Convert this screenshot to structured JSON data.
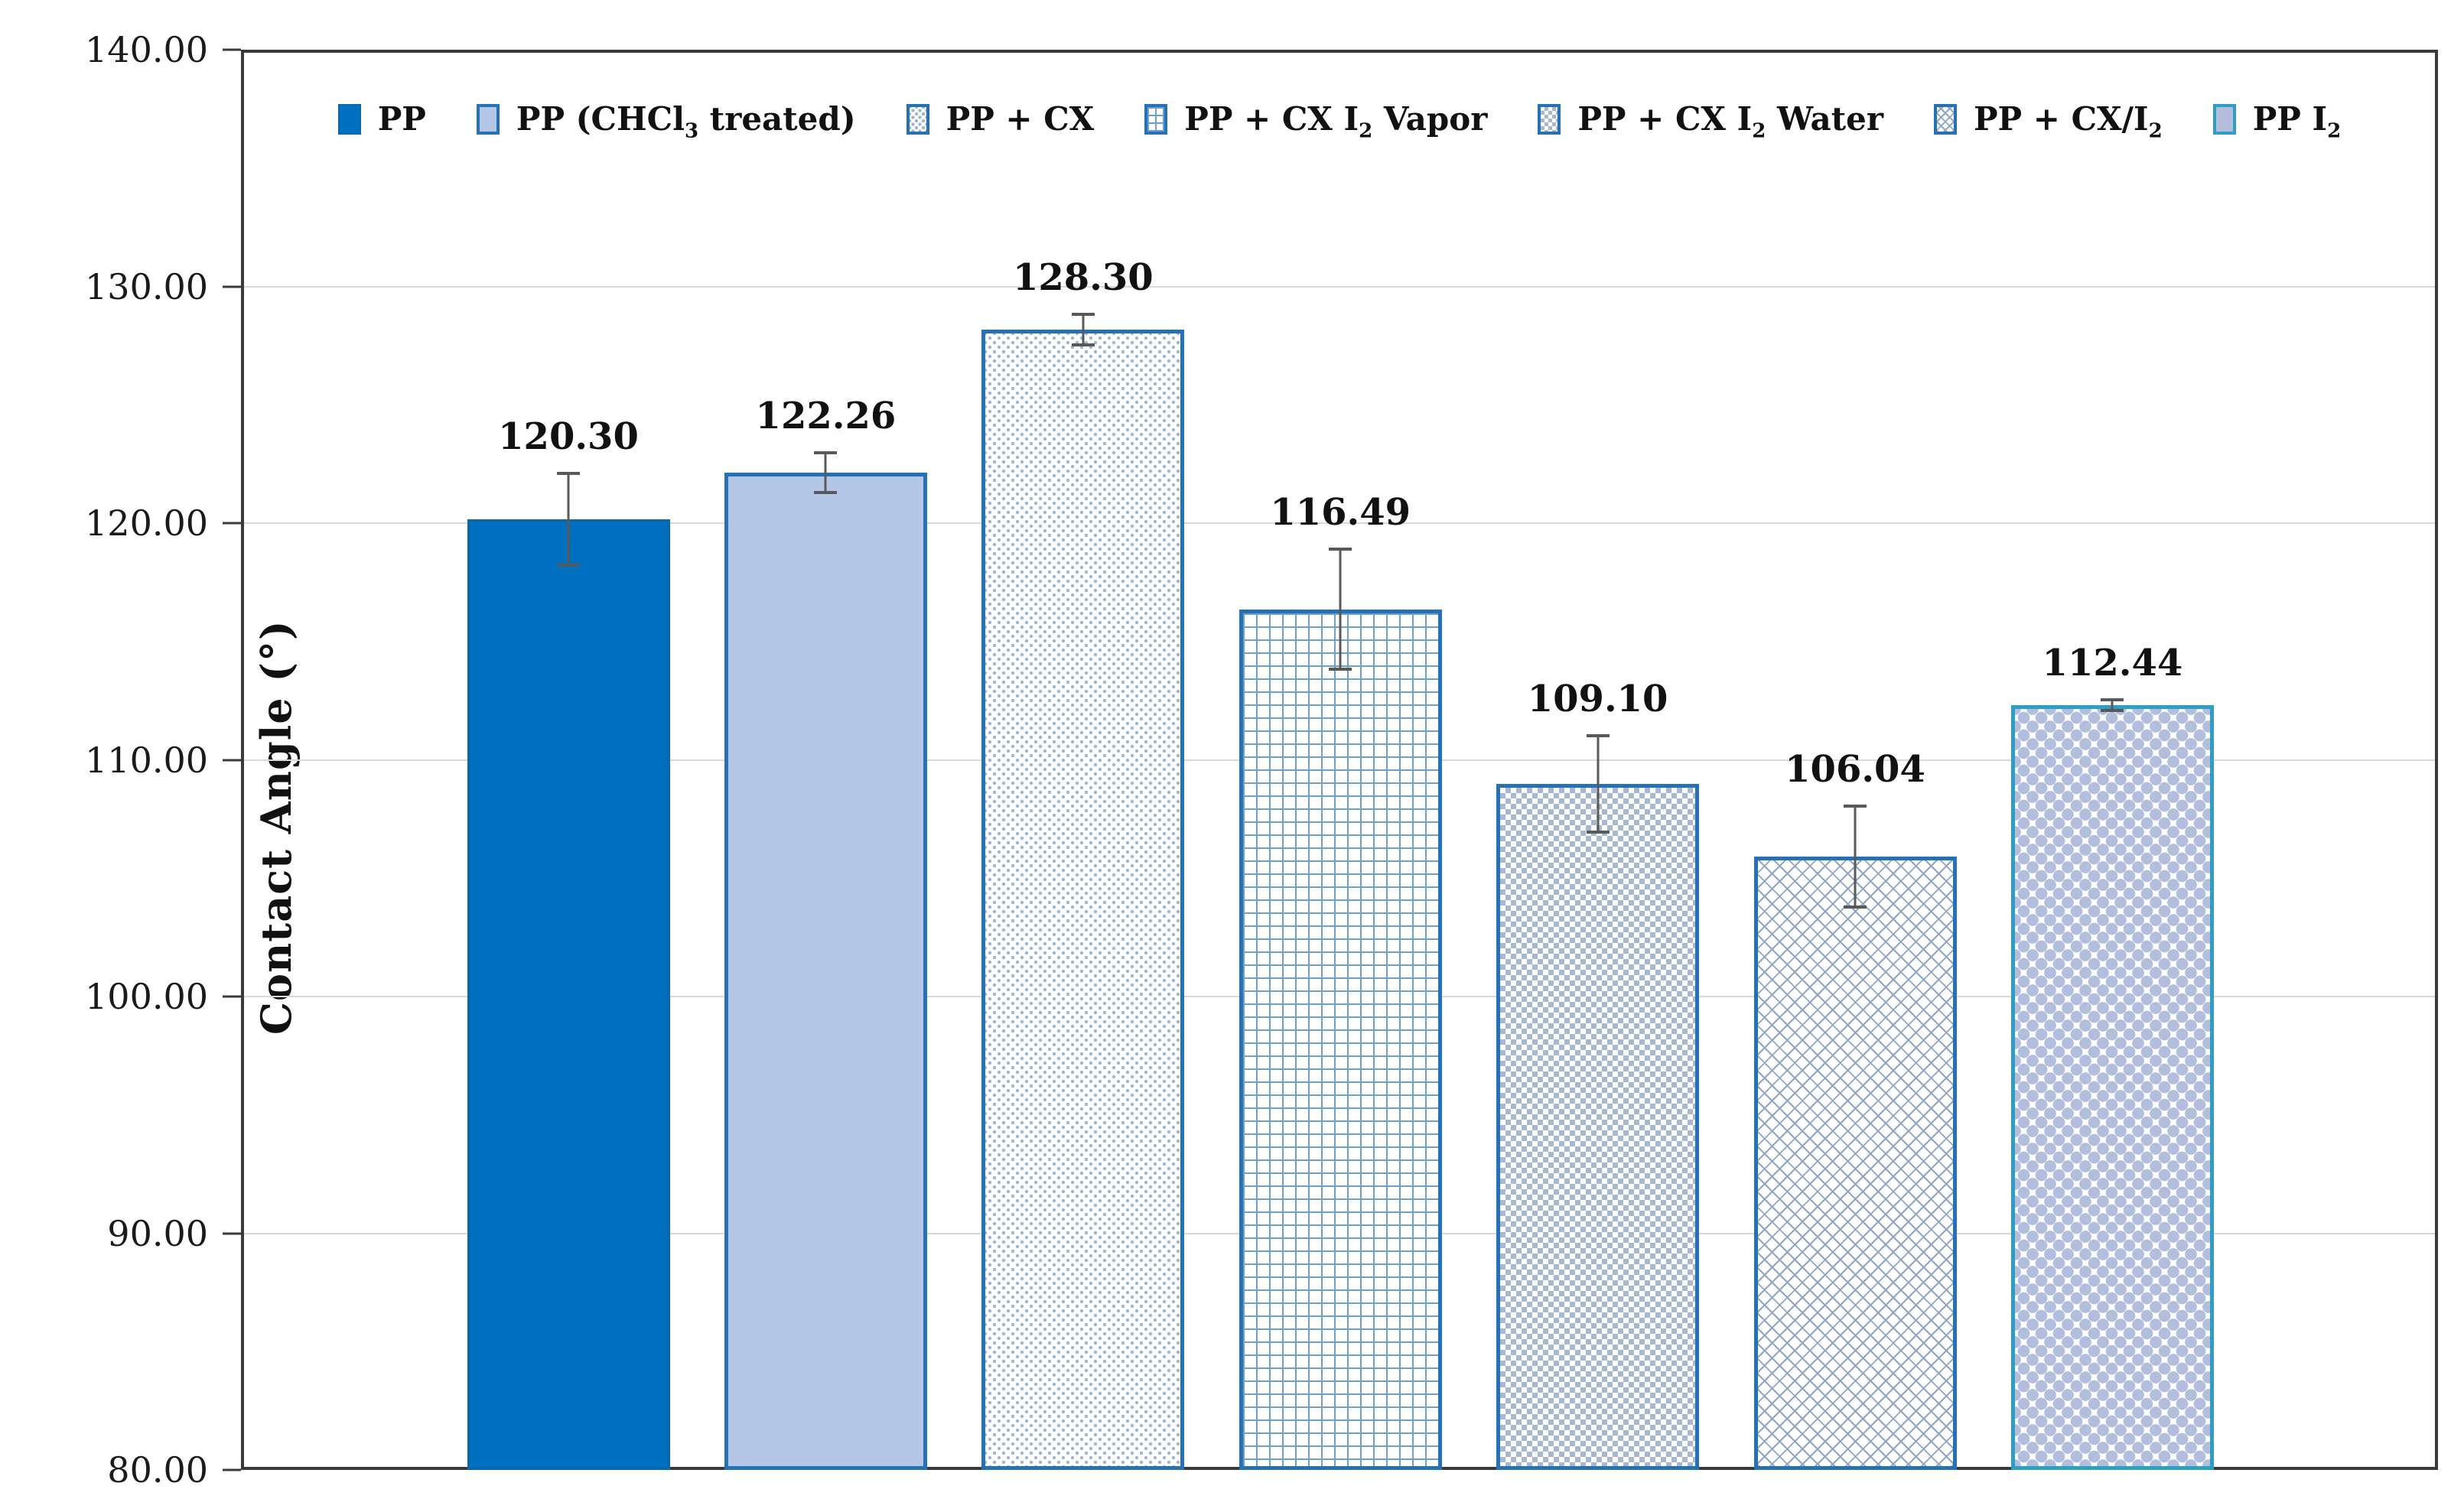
{
  "chart_data": {
    "type": "bar",
    "title": "",
    "xlabel": "",
    "ylabel": "Contact Angle (°)",
    "ylim": [
      80,
      140
    ],
    "grid": true,
    "legend_position": "top",
    "yticks": [
      {
        "value": 140,
        "label": "140.00"
      },
      {
        "value": 130,
        "label": "130.00"
      },
      {
        "value": 120,
        "label": "120.00"
      },
      {
        "value": 110,
        "label": "110.00"
      },
      {
        "value": 100,
        "label": "100.00"
      },
      {
        "value": 90,
        "label": "90.00"
      },
      {
        "value": 80,
        "label": "80.00"
      }
    ],
    "gridline_values": [
      130,
      120,
      110,
      100,
      90
    ],
    "series": [
      {
        "id": "pp",
        "label": "PP",
        "value": 120.3,
        "value_label": "120.30",
        "error": 2.0,
        "pattern": "solid",
        "fill": "#0070C0",
        "border": "#0B66AD"
      },
      {
        "id": "pp-chcl3-treated",
        "label": "PP (CHCl_{3} treated)",
        "value": 122.26,
        "value_label": "122.26",
        "error": 0.9,
        "pattern": "light",
        "fill": "#B4C7E7",
        "border": "#2471B7"
      },
      {
        "id": "pp-cx",
        "label": "PP + CX",
        "value": 128.3,
        "value_label": "128.30",
        "error": 0.7,
        "pattern": "dots",
        "fill": "#9FB6CE",
        "border": "#2471B7"
      },
      {
        "id": "pp-cx-i2-vapor",
        "label": "PP + CX I_{2} Vapor",
        "value": 116.49,
        "value_label": "116.49",
        "error": 2.6,
        "pattern": "grid",
        "fill": "#6F9FCB",
        "border": "#2471B7"
      },
      {
        "id": "pp-cx-i2-water",
        "label": "PP + CX I_{2} Water",
        "value": 109.1,
        "value_label": "109.10",
        "error": 2.1,
        "pattern": "checker",
        "fill": "#A8B8D0",
        "border": "#2471B7"
      },
      {
        "id": "pp-cx-i2",
        "label": "PP + CX/I_{2}",
        "value": 106.04,
        "value_label": "106.04",
        "error": 2.2,
        "pattern": "crosshatch",
        "fill": "#8FA6C4",
        "border": "#2471B7"
      },
      {
        "id": "pp-i2",
        "label": "PP I_{2}",
        "value": 112.44,
        "value_label": "112.44",
        "error": 0.3,
        "pattern": "diamonds",
        "fill": "#B3BEDC",
        "border": "#2E9EC4"
      }
    ],
    "colors": {
      "error_bar": "#595959",
      "gridline": "#D9D9D9",
      "frame": "#3A3A3A",
      "text": "#111111"
    }
  }
}
